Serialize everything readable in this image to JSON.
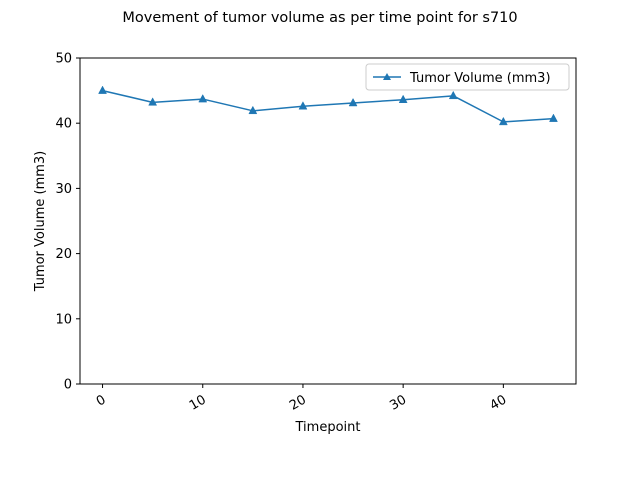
{
  "chart_data": {
    "type": "line",
    "title": "Movement of tumor volume as per time point for s710",
    "xlabel": "Timepoint",
    "ylabel": "Tumor Volume (mm3)",
    "x": [
      0,
      5,
      10,
      15,
      20,
      25,
      30,
      35,
      40,
      45
    ],
    "series": [
      {
        "name": "Tumor Volume (mm3)",
        "values": [
          45.0,
          43.2,
          43.7,
          41.9,
          42.6,
          43.1,
          43.6,
          44.2,
          40.2,
          40.7
        ],
        "color": "#1f77b4",
        "marker": "triangle-up"
      }
    ],
    "xlim": [
      -2.25,
      47.25
    ],
    "ylim": [
      0,
      50
    ],
    "xticks": [
      0,
      10,
      20,
      30,
      40
    ],
    "yticks": [
      0,
      10,
      20,
      30,
      40,
      50
    ],
    "xtick_labels": [
      "0",
      "10",
      "20",
      "30",
      "40"
    ],
    "ytick_labels": [
      "0",
      "10",
      "20",
      "30",
      "40",
      "50"
    ],
    "xtick_rotation": 30,
    "grid": false,
    "legend_position": "top-right"
  }
}
